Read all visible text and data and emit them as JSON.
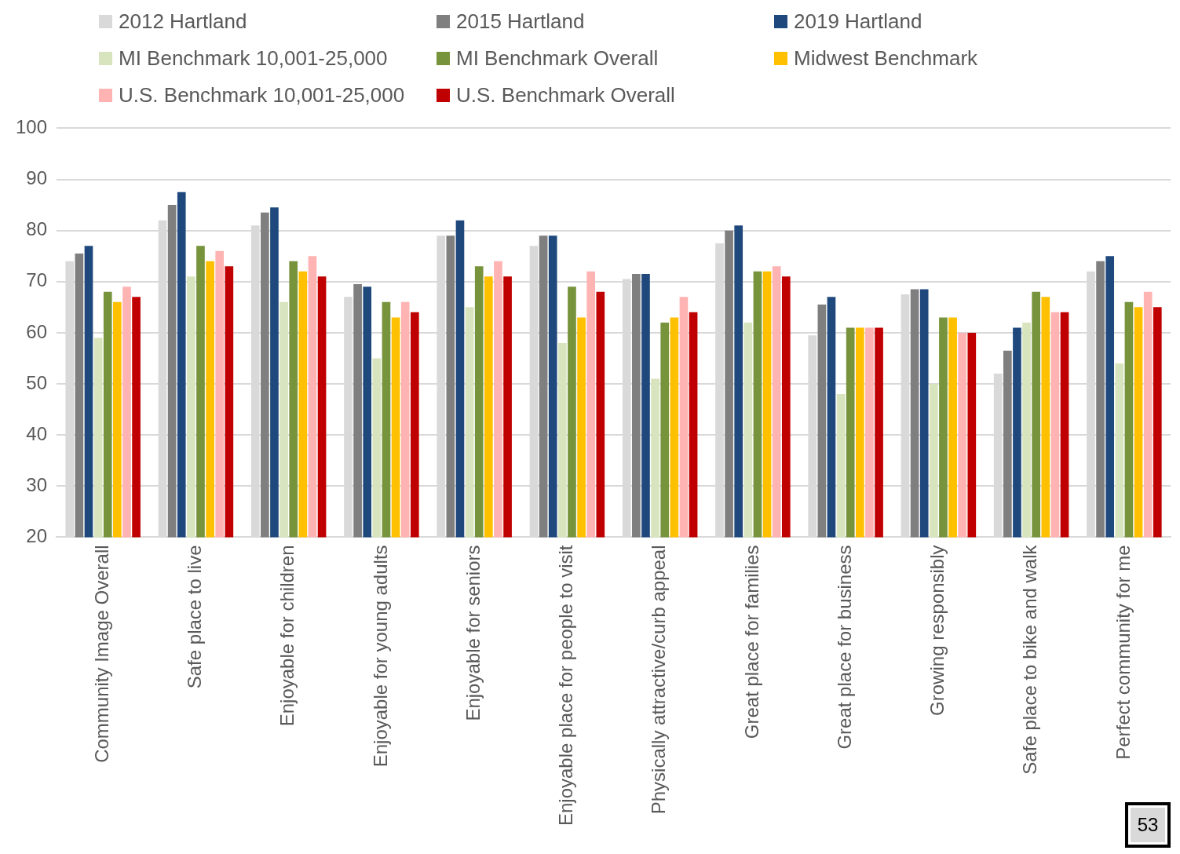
{
  "chart_data": {
    "type": "bar",
    "categories": [
      "Community Image Overall",
      "Safe place to live",
      "Enjoyable for children",
      "Enjoyable for young adults",
      "Enjoyable for seniors",
      "Enjoyable place for people to visit",
      "Physically attractive/curb appeal",
      "Great place for families",
      "Great place for business",
      "Growing responsibly",
      "Safe place to bike and walk",
      "Perfect community for me"
    ],
    "series": [
      {
        "name": "2012 Hartland",
        "color": "#d9d9d9",
        "values": [
          74,
          82,
          81,
          67,
          79,
          77,
          70.5,
          77.5,
          59.5,
          67.5,
          52,
          72
        ]
      },
      {
        "name": "2015 Hartland",
        "color": "#7f7f7f",
        "values": [
          75.5,
          85,
          83.5,
          69.5,
          79,
          79,
          71.5,
          80,
          65.5,
          68.5,
          56.5,
          74
        ]
      },
      {
        "name": "2019 Hartland",
        "color": "#1f497d",
        "values": [
          77,
          87.5,
          84.5,
          69,
          82,
          79,
          71.5,
          81,
          67,
          68.5,
          61,
          75
        ]
      },
      {
        "name": "MI Benchmark 10,001-25,000",
        "color": "#d7e4bd",
        "values": [
          59,
          71,
          66,
          55,
          65,
          58,
          51,
          62,
          48,
          50,
          62,
          54
        ]
      },
      {
        "name": "MI Benchmark Overall",
        "color": "#77933c",
        "values": [
          68,
          77,
          74,
          66,
          73,
          69,
          62,
          72,
          61,
          63,
          68,
          66
        ]
      },
      {
        "name": "Midwest Benchmark",
        "color": "#ffc000",
        "values": [
          66,
          74,
          72,
          63,
          71,
          63,
          63,
          72,
          61,
          63,
          67,
          65
        ]
      },
      {
        "name": "U.S. Benchmark 10,001-25,000",
        "color": "#ffb3b3",
        "values": [
          69,
          76,
          75,
          66,
          74,
          72,
          67,
          73,
          61,
          60,
          64,
          68
        ]
      },
      {
        "name": "U.S. Benchmark Overall",
        "color": "#c00000",
        "values": [
          67,
          73,
          71,
          64,
          71,
          68,
          64,
          71,
          61,
          60,
          64,
          65
        ]
      }
    ],
    "ylim": [
      20,
      100
    ],
    "yticks": [
      20,
      30,
      40,
      50,
      60,
      70,
      80,
      90,
      100
    ],
    "grid": "y",
    "legend": "top",
    "annotations": [
      "53"
    ]
  }
}
